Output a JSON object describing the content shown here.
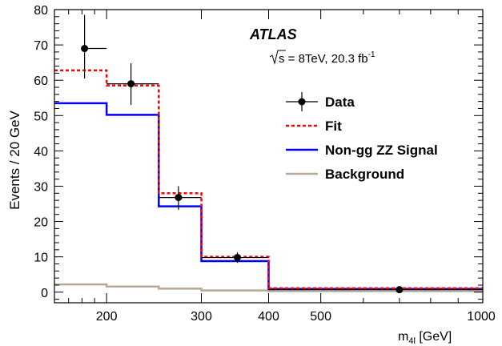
{
  "chart_data": {
    "type": "histogram",
    "experiment": "ATLAS",
    "energy_prefix": "s",
    "energy_suffix": " = 8TeV, 20.3 fb",
    "energy_superscript": "-1",
    "ylabel": "Events / 20 GeV",
    "xlabel_main": "m",
    "xlabel_sub": "4l",
    "xlabel_unit": " [GeV]",
    "x_scale": "log",
    "xlim": [
      160,
      1000
    ],
    "ylim": [
      -3,
      80
    ],
    "x_ticks": [
      {
        "value": 200,
        "label": "200"
      },
      {
        "value": 300,
        "label": "300"
      },
      {
        "value": 400,
        "label": "400"
      },
      {
        "value": 500,
        "label": "500"
      },
      {
        "value": 1000,
        "label": "1000"
      }
    ],
    "x_minor_ticks": [
      170,
      180,
      190,
      600,
      700,
      800,
      900
    ],
    "y_ticks": [
      0,
      10,
      20,
      30,
      40,
      50,
      60,
      70,
      80
    ],
    "bin_edges": [
      160,
      200,
      250,
      300,
      400,
      1000
    ],
    "series": [
      {
        "name": "Data",
        "kind": "points",
        "color": "#000000",
        "x": [
          182,
          222,
          272,
          350,
          700
        ],
        "y": [
          69,
          59,
          26.8,
          9.8,
          0.7
        ],
        "yerr_low": [
          8.5,
          6,
          3.5,
          1.5,
          0.25
        ],
        "yerr_high": [
          9.5,
          5.8,
          3.2,
          1.5,
          0.25
        ],
        "xerr_low": [
          182,
          200,
          250,
          300,
          400
        ],
        "xerr_high": [
          200,
          250,
          300,
          400,
          1000
        ]
      },
      {
        "name": "Fit",
        "kind": "step-dashed",
        "color": "#ff0000",
        "values": [
          62.8,
          58.5,
          28,
          10,
          1.1
        ]
      },
      {
        "name": "Non-gg ZZ Signal",
        "kind": "step",
        "color": "#0000ff",
        "values": [
          53.5,
          50.2,
          24.3,
          8.8,
          0.9
        ]
      },
      {
        "name": "Background",
        "kind": "step",
        "color": "#b5a898",
        "values": [
          2.2,
          1.6,
          1.0,
          0.5,
          0.3
        ]
      }
    ],
    "legend_position": "upper-right",
    "grid": false
  }
}
